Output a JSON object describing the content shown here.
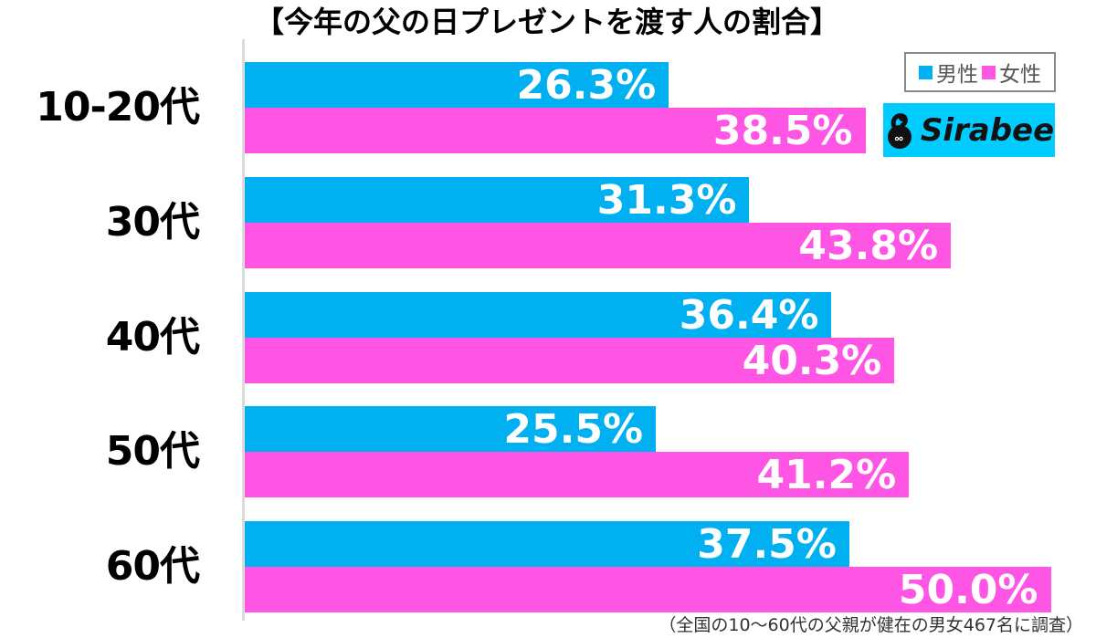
{
  "title": "【今年の父の日プレゼントを渡す人の割合】",
  "legend": {
    "items": [
      {
        "label": "男性",
        "color": "#00b0f0"
      },
      {
        "label": "女性",
        "color": "#ff55e5"
      }
    ]
  },
  "logo": {
    "text": "Sirabee",
    "background": "#00ccff",
    "icon": "sirabee-bird-icon"
  },
  "footnote": "（全国の10〜60代の父親が健在の男女467名に調査）",
  "colors": {
    "male": "#00b0f0",
    "female": "#ff55e5",
    "axis": "#dcdcdc"
  },
  "rows": [
    {
      "category": "10-20代",
      "male": "26.3%",
      "female": "38.5%"
    },
    {
      "category": "30代",
      "male": "31.3%",
      "female": "43.8%"
    },
    {
      "category": "40代",
      "male": "36.4%",
      "female": "40.3%"
    },
    {
      "category": "50代",
      "male": "25.5%",
      "female": "41.2%"
    },
    {
      "category": "60代",
      "male": "37.5%",
      "female": "50.0%"
    }
  ],
  "chart_data": {
    "type": "bar",
    "orientation": "horizontal",
    "title": "【今年の父の日プレゼントを渡す人の割合】",
    "categories": [
      "10-20代",
      "30代",
      "40代",
      "50代",
      "60代"
    ],
    "series": [
      {
        "name": "男性",
        "color": "#00b0f0",
        "values": [
          26.3,
          31.3,
          36.4,
          25.5,
          37.5
        ]
      },
      {
        "name": "女性",
        "color": "#ff55e5",
        "values": [
          38.5,
          43.8,
          40.3,
          41.2,
          50.0
        ]
      }
    ],
    "xlabel": "",
    "ylabel": "",
    "unit": "%",
    "xlim": [
      0,
      50
    ],
    "grid": false,
    "legend_position": "top-right",
    "data_labels": true,
    "annotations": [
      "（全国の10〜60代の父親が健在の男女467名に調査）",
      "Sirabee"
    ]
  }
}
